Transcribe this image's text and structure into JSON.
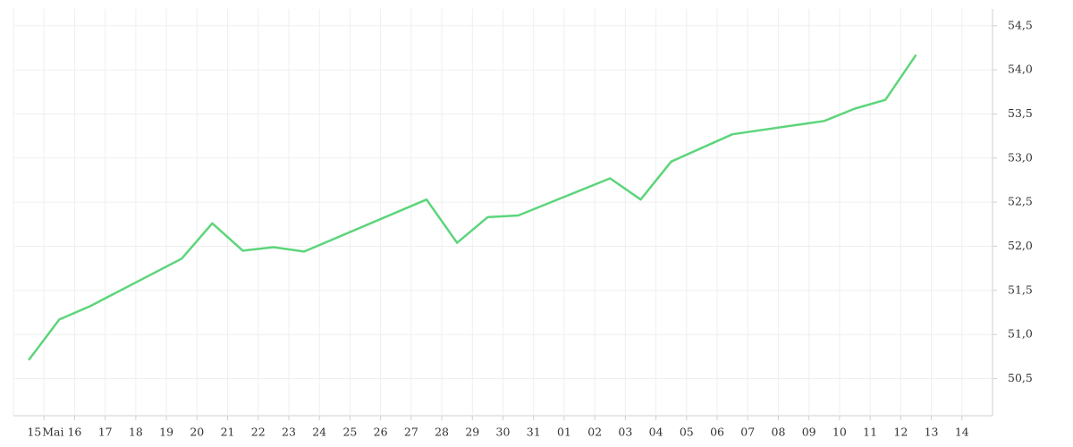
{
  "chart_data": {
    "type": "line",
    "x": [
      -0.5,
      0.5,
      1.5,
      4.5,
      5.5,
      6.5,
      7.5,
      8.5,
      12.5,
      13.5,
      14.5,
      15.5,
      18.5,
      19.5,
      20.5,
      22.5,
      25.5,
      26.5,
      27.5,
      28.5
    ],
    "values": [
      50.71,
      51.17,
      51.32,
      51.86,
      52.26,
      51.95,
      51.99,
      51.94,
      52.53,
      52.04,
      52.33,
      52.35,
      52.77,
      52.53,
      52.96,
      53.27,
      53.42,
      53.56,
      53.66,
      54.17
    ],
    "color": "#5dd57b",
    "xlim": [
      -1,
      31
    ],
    "xticks": [
      {
        "value": 0,
        "label": "15"
      },
      {
        "value": 1,
        "label": "16"
      },
      {
        "value": 2,
        "label": "17"
      },
      {
        "value": 3,
        "label": "18"
      },
      {
        "value": 4,
        "label": "19"
      },
      {
        "value": 5,
        "label": "20"
      },
      {
        "value": 6,
        "label": "21"
      },
      {
        "value": 7,
        "label": "22"
      },
      {
        "value": 8,
        "label": "23"
      },
      {
        "value": 9,
        "label": "24"
      },
      {
        "value": 10,
        "label": "25"
      },
      {
        "value": 11,
        "label": "26"
      },
      {
        "value": 12,
        "label": "27"
      },
      {
        "value": 13,
        "label": "28"
      },
      {
        "value": 14,
        "label": "29"
      },
      {
        "value": 15,
        "label": "30"
      },
      {
        "value": 16,
        "label": "31"
      },
      {
        "value": 17,
        "label": "01"
      },
      {
        "value": 18,
        "label": "02"
      },
      {
        "value": 19,
        "label": "03"
      },
      {
        "value": 20,
        "label": "04"
      },
      {
        "value": 21,
        "label": "05"
      },
      {
        "value": 22,
        "label": "06"
      },
      {
        "value": 23,
        "label": "07"
      },
      {
        "value": 24,
        "label": "08"
      },
      {
        "value": 25,
        "label": "09"
      },
      {
        "value": 26,
        "label": "10"
      },
      {
        "value": 27,
        "label": "11"
      },
      {
        "value": 28,
        "label": "12"
      },
      {
        "value": 29,
        "label": "13"
      },
      {
        "value": 30,
        "label": "14"
      }
    ],
    "month_label": "Mai",
    "ylim": [
      50.08,
      54.69
    ],
    "yticks": [
      {
        "value": 50.5,
        "label": "50,5"
      },
      {
        "value": 51,
        "label": "51,0"
      },
      {
        "value": 51.5,
        "label": "51,5"
      },
      {
        "value": 52,
        "label": "52,0"
      },
      {
        "value": 52.5,
        "label": "52,5"
      },
      {
        "value": 53,
        "label": "53,0"
      },
      {
        "value": 53.5,
        "label": "53,5"
      },
      {
        "value": 54,
        "label": "54,0"
      },
      {
        "value": 54.5,
        "label": "54,5"
      }
    ],
    "grid": true
  }
}
